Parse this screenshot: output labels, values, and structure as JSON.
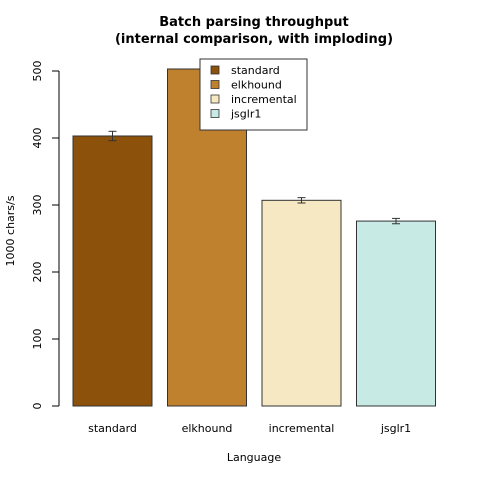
{
  "chart_data": {
    "type": "bar",
    "title": "Batch parsing throughput",
    "subtitle": "(internal comparison, with imploding)",
    "xlabel": "Language",
    "ylabel": "1000 chars/s",
    "categories": [
      "standard",
      "elkhound",
      "incremental",
      "jsglr1"
    ],
    "values": [
      403,
      503,
      307,
      276
    ],
    "errors": [
      7,
      7,
      4,
      4
    ],
    "colors": [
      "#8c510a",
      "#bf812d",
      "#f6e8c3",
      "#c7eae5"
    ],
    "ylim": [
      0,
      500
    ],
    "yticks": [
      "0",
      "100",
      "200",
      "300",
      "400",
      "500"
    ],
    "legend": {
      "placement": "top-center",
      "entries": [
        "standard",
        "elkhound",
        "incremental",
        "jsglr1"
      ]
    },
    "grid": false
  }
}
